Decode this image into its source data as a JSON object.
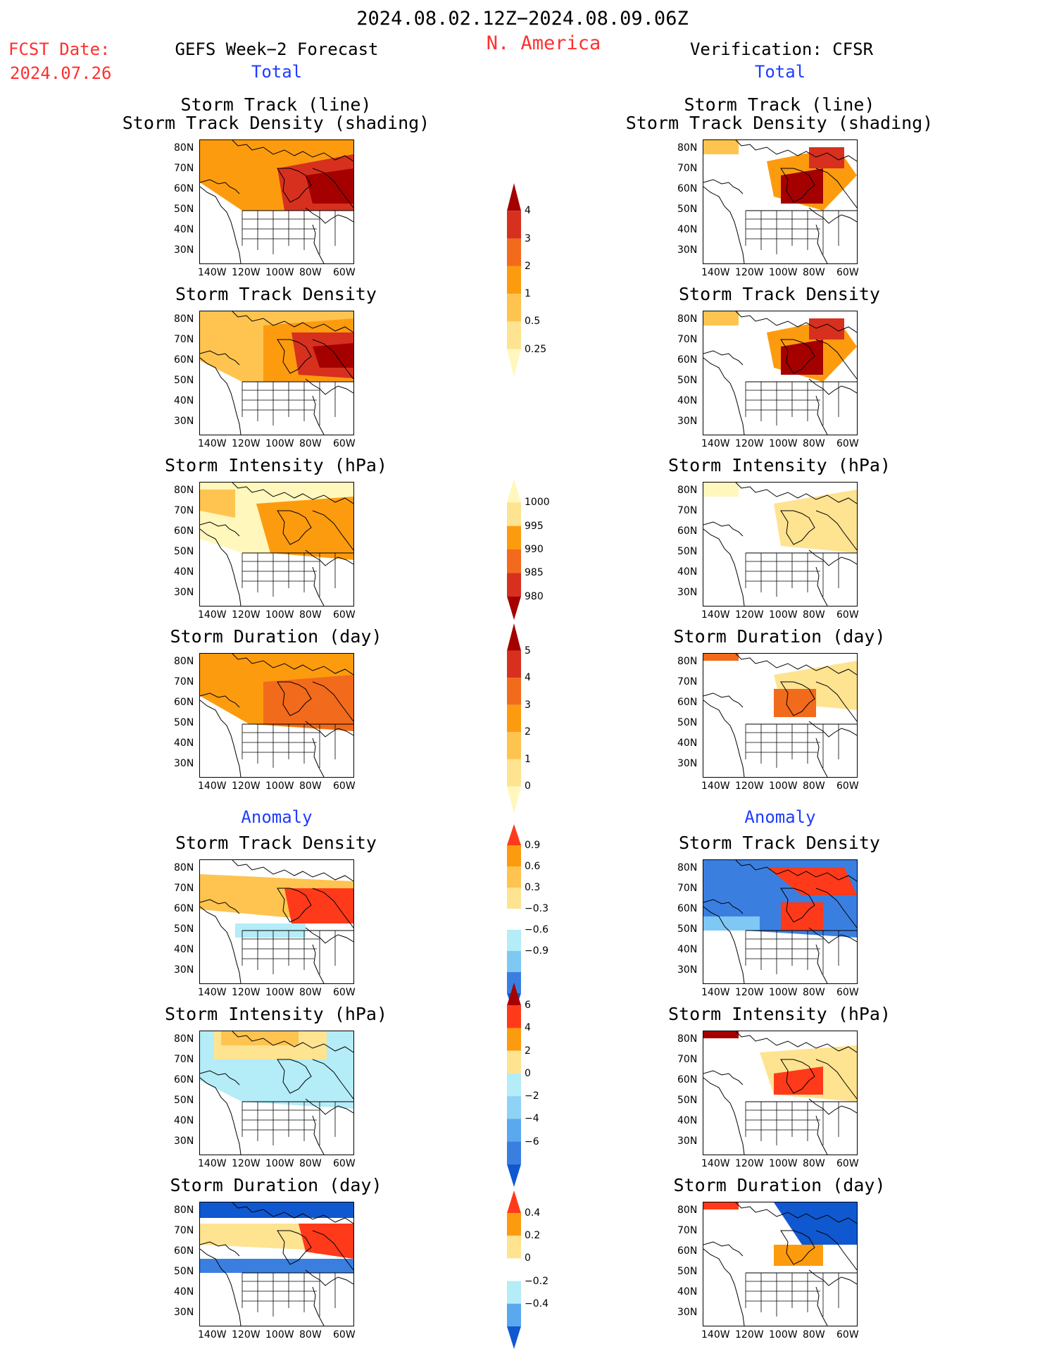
{
  "header": {
    "period": "2024.08.02.12Z−2024.08.09.06Z",
    "region": "N. America",
    "fcst_label": "FCST Date:",
    "fcst_date": "2024.07.26",
    "left_title": "GEFS Week−2 Forecast",
    "right_title": "Verification: CFSR",
    "total_left": "Total",
    "total_right": "Total",
    "anomaly_left": "Anomaly",
    "anomaly_right": "Anomaly"
  },
  "panel_titles": {
    "track_line": "Storm Track (line)",
    "track_shading": "Storm Track Density (shading)",
    "density": "Storm Track Density",
    "intensity": "Storm Intensity (hPa)",
    "duration": "Storm Duration (day)"
  },
  "axes": {
    "lat_ticks": [
      "80N",
      "70N",
      "60N",
      "50N",
      "40N",
      "30N"
    ],
    "lon_ticks": [
      "140W",
      "120W",
      "100W",
      "80W",
      "60W"
    ]
  },
  "colorbars": {
    "density": {
      "labels": [
        "4",
        "3",
        "2",
        "1",
        "0.5",
        "0.25"
      ],
      "colors": [
        "#a50000",
        "#d7301f",
        "#f26a1b",
        "#fd9b0f",
        "#fec44f",
        "#fee391",
        "#fff7bc"
      ]
    },
    "intensity": {
      "labels": [
        "1000",
        "995",
        "990",
        "985",
        "980"
      ],
      "colors": [
        "#fff7bc",
        "#fee391",
        "#fd9b0f",
        "#f26a1b",
        "#d7301f",
        "#a50000"
      ]
    },
    "duration": {
      "labels": [
        "5",
        "4",
        "3",
        "2",
        "1",
        "0"
      ],
      "colors": [
        "#a50000",
        "#d7301f",
        "#f26a1b",
        "#fd9b0f",
        "#fec44f",
        "#fee391",
        "#fff7bc"
      ]
    },
    "anom_density": {
      "labels": [
        "0.9",
        "0.6",
        "0.3",
        "−0.3",
        "−0.6",
        "−0.9"
      ],
      "colors": [
        "#ff3a1a",
        "#fd9b0f",
        "#fec44f",
        "#fee391",
        "#ffffff",
        "#b4ecf8",
        "#7ec8f3",
        "#3a7fe0",
        "#1058d0"
      ]
    },
    "anom_intensity": {
      "labels": [
        "6",
        "4",
        "2",
        "0",
        "−2",
        "−4",
        "−6"
      ],
      "colors": [
        "#a50000",
        "#ff3a1a",
        "#fd9b0f",
        "#fee391",
        "#b4ecf8",
        "#8ed2f6",
        "#5aa8ee",
        "#3a7fe0",
        "#1058d0"
      ]
    },
    "anom_duration": {
      "labels": [
        "0.4",
        "0.2",
        "0",
        "−0.2",
        "−0.4"
      ],
      "colors": [
        "#ff3a1a",
        "#fd9b0f",
        "#fee391",
        "#ffffff",
        "#b4ecf8",
        "#5aa8ee",
        "#1058d0"
      ]
    }
  }
}
